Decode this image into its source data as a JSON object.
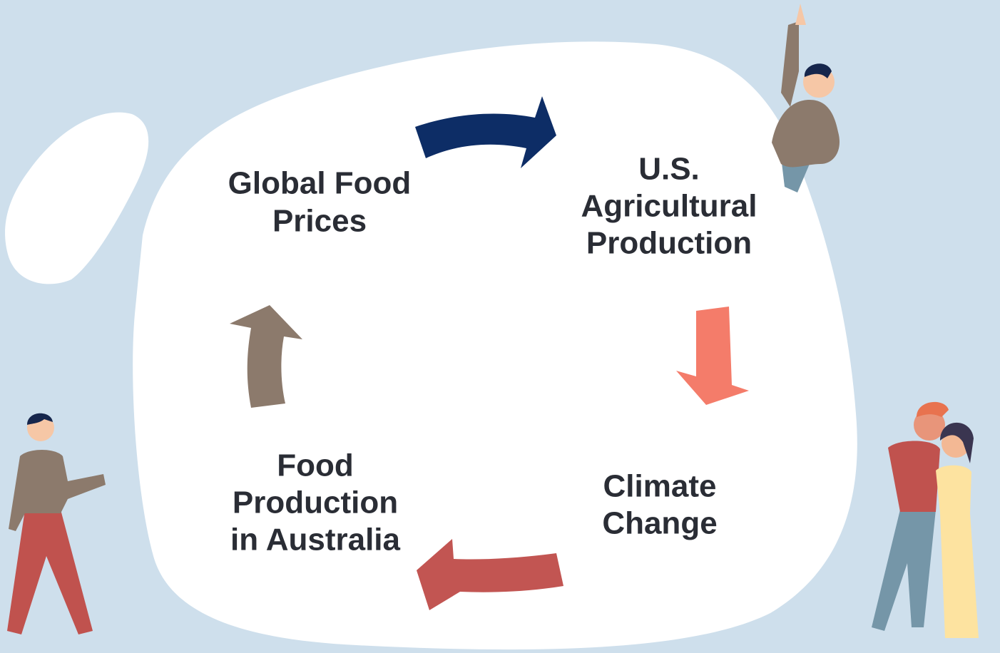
{
  "nodes": [
    {
      "lines": [
        "Global Food",
        "Prices"
      ]
    },
    {
      "lines": [
        "U.S.",
        "Agricultural",
        "Production"
      ]
    },
    {
      "lines": [
        "Climate",
        "Change"
      ]
    },
    {
      "lines": [
        "Food",
        "Production",
        "in Australia"
      ]
    }
  ]
}
